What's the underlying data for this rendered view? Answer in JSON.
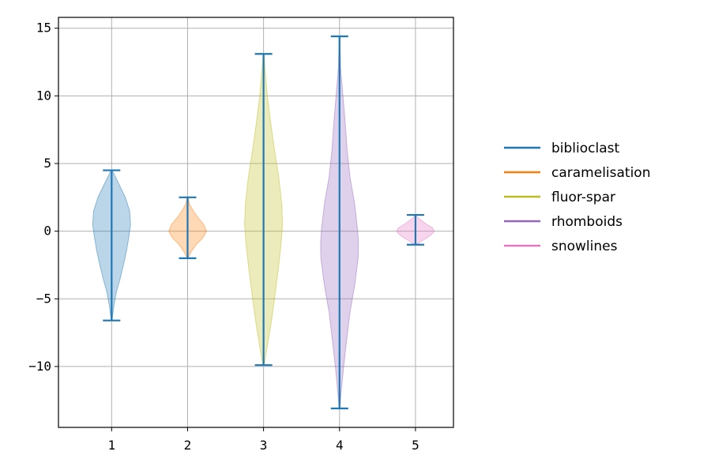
{
  "chart_data": {
    "type": "violin",
    "categories": [
      "1",
      "2",
      "3",
      "4",
      "5"
    ],
    "series": [
      {
        "name": "biblioclast",
        "color": "#1f77b4",
        "min": -6.6,
        "max": 4.5,
        "profile": [
          [
            -6.6,
            0.02
          ],
          [
            -5.5,
            0.12
          ],
          [
            -4.5,
            0.25
          ],
          [
            -3.5,
            0.45
          ],
          [
            -2.5,
            0.62
          ],
          [
            -1.5,
            0.78
          ],
          [
            -0.5,
            0.9
          ],
          [
            0.5,
            1.0
          ],
          [
            1.5,
            0.95
          ],
          [
            2.5,
            0.72
          ],
          [
            3.5,
            0.38
          ],
          [
            4.5,
            0.03
          ]
        ]
      },
      {
        "name": "caramelisation",
        "color": "#ff7f0e",
        "min": -2.0,
        "max": 2.5,
        "profile": [
          [
            -2.0,
            0.02
          ],
          [
            -1.5,
            0.2
          ],
          [
            -1.0,
            0.45
          ],
          [
            -0.5,
            0.8
          ],
          [
            0.0,
            1.0
          ],
          [
            0.5,
            0.85
          ],
          [
            1.0,
            0.55
          ],
          [
            1.5,
            0.3
          ],
          [
            2.0,
            0.1
          ],
          [
            2.5,
            0.02
          ]
        ]
      },
      {
        "name": "fluor-spar",
        "color": "#bcbd22",
        "min": -9.9,
        "max": 13.1,
        "profile": [
          [
            -9.9,
            0.03
          ],
          [
            -8.5,
            0.2
          ],
          [
            -7.0,
            0.38
          ],
          [
            -5.0,
            0.58
          ],
          [
            -3.0,
            0.76
          ],
          [
            -1.0,
            0.92
          ],
          [
            0.5,
            1.0
          ],
          [
            2.0,
            0.96
          ],
          [
            4.0,
            0.8
          ],
          [
            6.0,
            0.58
          ],
          [
            8.0,
            0.38
          ],
          [
            10.0,
            0.2
          ],
          [
            12.0,
            0.08
          ],
          [
            13.1,
            0.02
          ]
        ]
      },
      {
        "name": "rhomboids",
        "color": "#9467bd",
        "min": -13.1,
        "max": 14.4,
        "profile": [
          [
            -13.1,
            0.02
          ],
          [
            -12.0,
            0.08
          ],
          [
            -10.0,
            0.22
          ],
          [
            -8.0,
            0.38
          ],
          [
            -6.0,
            0.55
          ],
          [
            -4.0,
            0.8
          ],
          [
            -2.0,
            0.98
          ],
          [
            -1.0,
            1.0
          ],
          [
            0.0,
            0.96
          ],
          [
            2.0,
            0.8
          ],
          [
            4.0,
            0.55
          ],
          [
            6.0,
            0.4
          ],
          [
            8.0,
            0.3
          ],
          [
            10.0,
            0.18
          ],
          [
            12.0,
            0.06
          ],
          [
            14.4,
            0.01
          ]
        ]
      },
      {
        "name": "snowlines",
        "color": "#e377c2",
        "min": -1.0,
        "max": 1.2,
        "profile": [
          [
            -1.0,
            0.03
          ],
          [
            -0.75,
            0.3
          ],
          [
            -0.5,
            0.6
          ],
          [
            -0.25,
            0.85
          ],
          [
            0.0,
            1.0
          ],
          [
            0.25,
            0.9
          ],
          [
            0.5,
            0.6
          ],
          [
            0.75,
            0.35
          ],
          [
            1.0,
            0.12
          ],
          [
            1.2,
            0.02
          ]
        ]
      }
    ],
    "line_color": "#1f77b4",
    "xlim": [
      0.3,
      5.5
    ],
    "ylim": [
      -14.5,
      15.8
    ],
    "yticks": [
      -10,
      -5,
      0,
      5,
      10,
      15
    ],
    "ytick_labels": [
      "−10",
      "−5",
      "0",
      "5",
      "10",
      "15"
    ],
    "xticks": [
      1,
      2,
      3,
      4,
      5
    ],
    "xtick_labels": [
      "1",
      "2",
      "3",
      "4",
      "5"
    ],
    "grid": true,
    "legend_placement": "right, outside plot",
    "legend": [
      "biblioclast",
      "caramelisation",
      "fluor-spar",
      "rhomboids",
      "snowlines"
    ]
  }
}
